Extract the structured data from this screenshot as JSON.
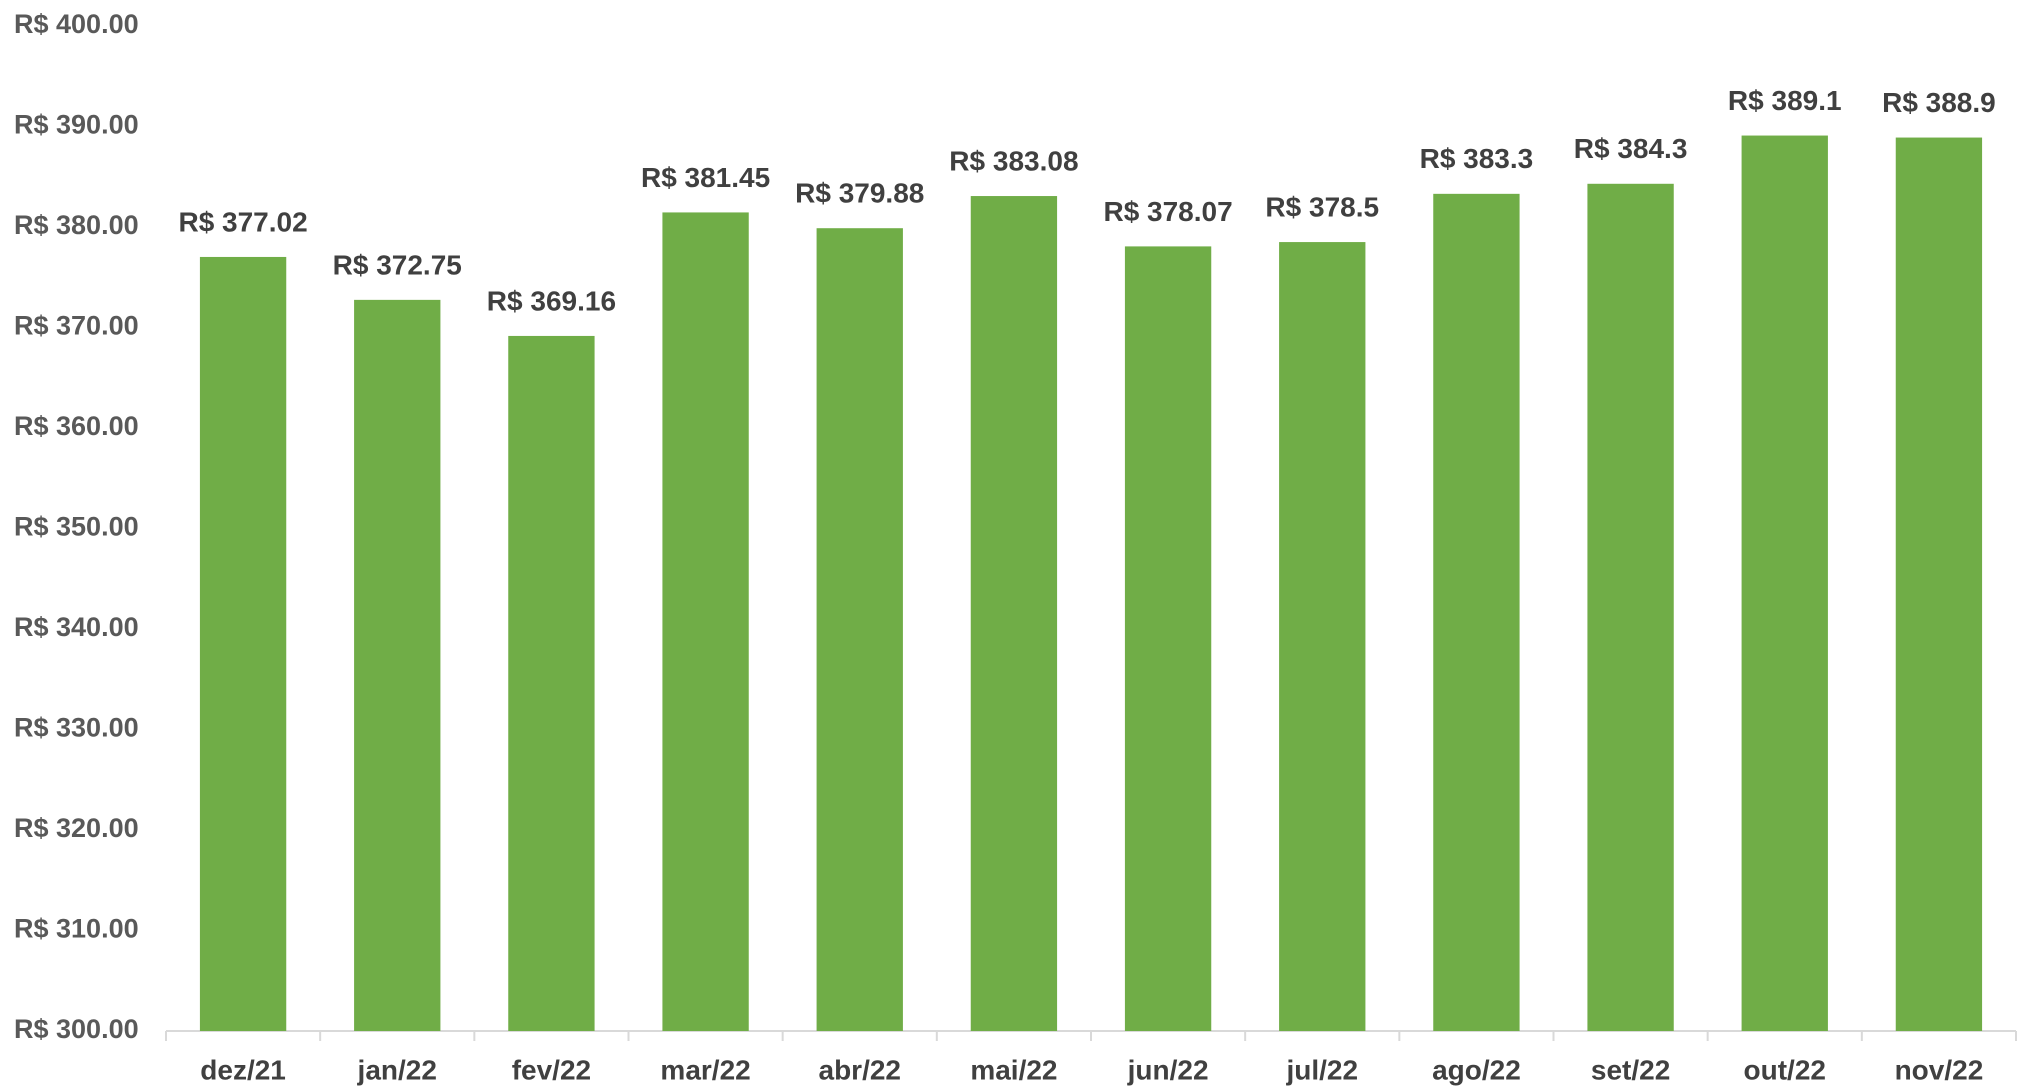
{
  "chart_data": {
    "type": "bar",
    "categories": [
      "dez/21",
      "jan/22",
      "fev/22",
      "mar/22",
      "abr/22",
      "mai/22",
      "jun/22",
      "jul/22",
      "ago/22",
      "set/22",
      "out/22",
      "nov/22"
    ],
    "values": [
      377.02,
      372.75,
      369.16,
      381.45,
      379.88,
      383.08,
      378.07,
      378.5,
      383.3,
      384.3,
      389.1,
      388.9
    ],
    "value_labels": [
      "R$ 377.02",
      "R$ 372.75",
      "R$ 369.16",
      "R$ 381.45",
      "R$ 379.88",
      "R$ 383.08",
      "R$ 378.07",
      "R$ 378.5",
      "R$ 383.3",
      "R$ 384.3",
      "R$ 389.1",
      "R$ 388.9"
    ],
    "color": "#70ad47",
    "ylim": [
      300,
      400
    ],
    "yticks": [
      {
        "value": 300,
        "label": "R$ 300.00"
      },
      {
        "value": 310,
        "label": "R$ 310.00"
      },
      {
        "value": 320,
        "label": "R$ 320.00"
      },
      {
        "value": 330,
        "label": "R$ 330.00"
      },
      {
        "value": 340,
        "label": "R$ 340.00"
      },
      {
        "value": 350,
        "label": "R$ 350.00"
      },
      {
        "value": 360,
        "label": "R$ 360.00"
      },
      {
        "value": 370,
        "label": "R$ 370.00"
      },
      {
        "value": 380,
        "label": "R$ 380.00"
      },
      {
        "value": 390,
        "label": "R$ 390.00"
      },
      {
        "value": 400,
        "label": "R$ 400.00"
      }
    ],
    "grid": false
  }
}
